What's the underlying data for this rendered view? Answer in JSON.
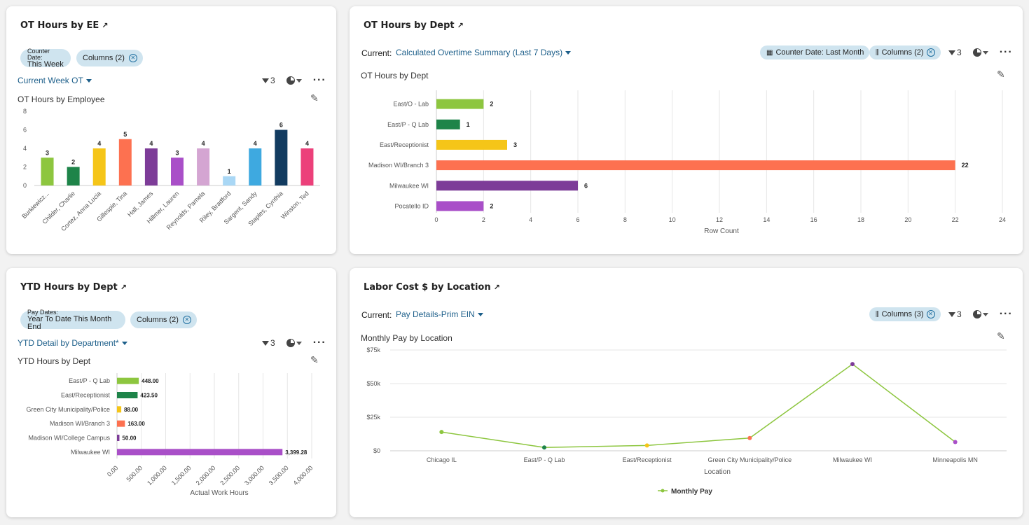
{
  "colors": [
    "#8dc63f",
    "#1e8449",
    "#f5c518",
    "#fd7150",
    "#7d3c98",
    "#a94fc8",
    "#d4a5d2",
    "#a9d7f5",
    "#3ea9e0",
    "#123b60",
    "#ec407a"
  ],
  "card1": {
    "title": "OT Hours by EE",
    "chip_filter": {
      "label": "Counter Date:",
      "value": "This Week"
    },
    "chip_columns": "Columns (2)",
    "view": "Current Week OT",
    "filter_count": "3",
    "chart_title": "OT Hours by Employee"
  },
  "card2": {
    "title": "OT Hours by Dept",
    "current_label": "Current:",
    "view": "Calculated Overtime Summary (Last 7 Days)",
    "chip_date": "Counter Date: Last Month",
    "chip_columns": "Columns (2)",
    "filter_count": "3",
    "chart_title": "OT Hours by Dept"
  },
  "card3": {
    "title": "YTD Hours by Dept",
    "chip_filter": {
      "label": "Pay Dates:",
      "value": "Year To Date This Month End"
    },
    "chip_columns": "Columns (2)",
    "view": "YTD Detail by Department*",
    "filter_count": "3",
    "chart_title": "YTD Hours by Dept"
  },
  "card4": {
    "title": "Labor Cost $ by Location",
    "current_label": "Current:",
    "view": "Pay Details-Prim EIN",
    "chip_columns": "Columns (3)",
    "filter_count": "3",
    "chart_title": "Monthly Pay by Location"
  },
  "chart_data": [
    {
      "type": "bar",
      "title": "OT Hours by Employee",
      "categories": [
        "Burkiewicz...",
        "Childer, Charlie",
        "Cortez, Anna Lucia",
        "Gillespie, Tina",
        "Hall, James",
        "Hillmer, Lauren",
        "Reynolds, Pamela",
        "Riley, Bradford",
        "Sargent, Sandy",
        "Staples, Cynthia",
        "Winston, Ted"
      ],
      "values": [
        3,
        2,
        4,
        5,
        4,
        3,
        4,
        1,
        4,
        6,
        4
      ],
      "ylim": [
        0,
        8
      ],
      "yticks": [
        0,
        2,
        4,
        6,
        8
      ],
      "grid": false
    },
    {
      "type": "bar",
      "orientation": "horizontal",
      "title": "OT Hours by Dept",
      "categories": [
        "East/O - Lab",
        "East/P - Q Lab",
        "East/Receptionist",
        "Madison WI/Branch 3",
        "Milwaukee WI",
        "Pocatello ID"
      ],
      "values": [
        2,
        1,
        3,
        22,
        6,
        2
      ],
      "xlabel": "Row Count",
      "xlim": [
        0,
        24
      ],
      "xticks": [
        0,
        2,
        4,
        6,
        8,
        10,
        12,
        14,
        16,
        18,
        20,
        22,
        24
      ],
      "grid": true
    },
    {
      "type": "bar",
      "orientation": "horizontal",
      "title": "YTD Hours by Dept",
      "categories": [
        "East/P - Q Lab",
        "East/Receptionist",
        "Green City Municipality/Police",
        "Madison WI/Branch 3",
        "Madison WI/College Campus",
        "Milwaukee WI"
      ],
      "values": [
        448.0,
        423.5,
        88.0,
        163.0,
        50.0,
        3399.28
      ],
      "value_labels": [
        "448.00",
        "423.50",
        "88.00",
        "163.00",
        "50.00",
        "3,399.28"
      ],
      "xlabel": "Actual Work Hours",
      "xlim": [
        0,
        4000
      ],
      "xticks": [
        "0.00",
        "500.00",
        "1,000.00",
        "1,500.00",
        "2,000.00",
        "2,500.00",
        "3,000.00",
        "3,500.00",
        "4,000.00"
      ],
      "grid": true
    },
    {
      "type": "line",
      "title": "Monthly Pay by Location",
      "categories": [
        "Chicago IL",
        "East/P - Q Lab",
        "East/Receptionist",
        "Green City Municipality/Police",
        "Milwaukee WI",
        "Minneapolis MN"
      ],
      "series": [
        {
          "name": "Monthly Pay",
          "values": [
            14000,
            2500,
            4000,
            9500,
            64500,
            6500
          ]
        }
      ],
      "xlabel": "Location",
      "ylim": [
        0,
        75000
      ],
      "yticks": [
        "$0",
        "$25k",
        "$50k",
        "$75k"
      ],
      "line_color": "#8dc63f",
      "point_colors": [
        "#8dc63f",
        "#1e8449",
        "#f5c518",
        "#fd7150",
        "#7d3c98",
        "#a94fc8"
      ],
      "legend": "bottom",
      "grid": true
    }
  ]
}
